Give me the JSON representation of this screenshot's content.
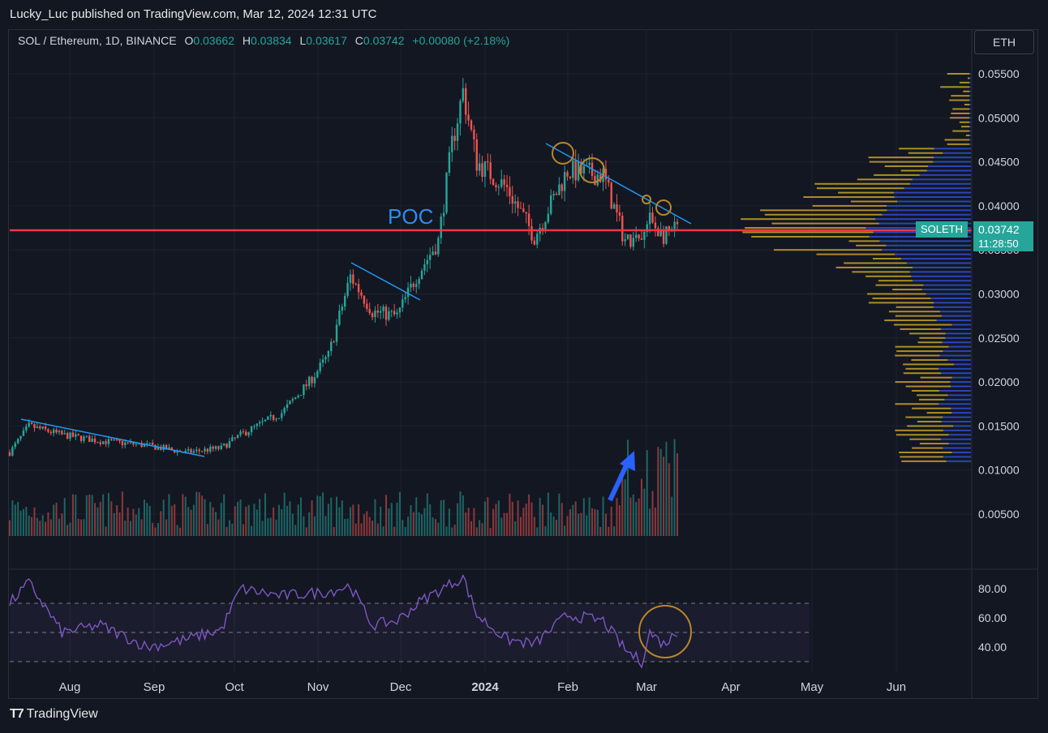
{
  "header": {
    "publisher": "Lucky_Luc published on TradingView.com, Mar 12, 2024 12:31 UTC"
  },
  "legend": {
    "symbol": "SOL / Ethereum, 1D, BINANCE",
    "o_label": "O",
    "o_value": "0.03662",
    "h_label": "H",
    "h_value": "0.03834",
    "l_label": "L",
    "l_value": "0.03617",
    "c_label": "C",
    "c_value": "0.03742",
    "change": "+0.00080 (+2.18%)"
  },
  "currency_button": "ETH",
  "price_tag": {
    "symbol": "SOLETH",
    "price": "0.03742",
    "countdown": "11:28:50"
  },
  "annotation": "POC",
  "footer": {
    "brand": "TradingView"
  },
  "colors": {
    "up": "#26a69a",
    "down": "#ef5350",
    "poc": "#f23645",
    "trendline": "#2196f3",
    "profile_gold": "#c9a227",
    "profile_blue": "#2e4fd4",
    "rsi": "#7e57c2",
    "circle": "#b8862b"
  },
  "chart_data": [
    {
      "type": "candlestick",
      "title": "SOL / Ethereum, 1D, BINANCE",
      "ylim": [
        0.0,
        0.056
      ],
      "y_ticks": [
        "0.05500",
        "0.05000",
        "0.04500",
        "0.04000",
        "0.03500",
        "0.03000",
        "0.02500",
        "0.02000",
        "0.01500",
        "0.01000",
        "0.00500"
      ],
      "x_ticks": [
        "Aug",
        "Sep",
        "Oct",
        "Nov",
        "Dec",
        "2024",
        "Feb",
        "Mar",
        "Apr",
        "May",
        "Jun"
      ],
      "poc_level": 0.0375,
      "approx_close_path": [
        [
          "2023-07-13",
          0.012
        ],
        [
          "2023-07-20",
          0.015
        ],
        [
          "2023-08-01",
          0.014
        ],
        [
          "2023-08-15",
          0.0133
        ],
        [
          "2023-09-01",
          0.0128
        ],
        [
          "2023-09-15",
          0.012
        ],
        [
          "2023-09-28",
          0.0125
        ],
        [
          "2023-10-05",
          0.014
        ],
        [
          "2023-10-20",
          0.0165
        ],
        [
          "2023-10-30",
          0.02
        ],
        [
          "2023-11-06",
          0.023
        ],
        [
          "2023-11-14",
          0.032
        ],
        [
          "2023-11-22",
          0.028
        ],
        [
          "2023-12-01",
          0.0275
        ],
        [
          "2023-12-08",
          0.032
        ],
        [
          "2023-12-16",
          0.036
        ],
        [
          "2023-12-21",
          0.047
        ],
        [
          "2023-12-25",
          0.053
        ],
        [
          "2023-12-30",
          0.045
        ],
        [
          "2024-01-10",
          0.042
        ],
        [
          "2024-01-20",
          0.0365
        ],
        [
          "2024-02-01",
          0.044
        ],
        [
          "2024-02-14",
          0.0435
        ],
        [
          "2024-02-22",
          0.036
        ],
        [
          "2024-02-28",
          0.036
        ],
        [
          "2024-03-02",
          0.0385
        ],
        [
          "2024-03-07",
          0.0365
        ],
        [
          "2024-03-12",
          0.0374
        ]
      ],
      "volume_profile": "visible",
      "volume": "visible"
    },
    {
      "type": "line",
      "title": "RSI",
      "ylim": [
        25,
        90
      ],
      "y_ticks": [
        "80.00",
        "60.00",
        "40.00"
      ],
      "bands": [
        30,
        50,
        70
      ],
      "approx_values": [
        [
          "2023-07-13",
          70
        ],
        [
          "2023-07-20",
          84
        ],
        [
          "2023-08-01",
          50
        ],
        [
          "2023-08-15",
          55
        ],
        [
          "2023-09-01",
          40
        ],
        [
          "2023-09-15",
          45
        ],
        [
          "2023-09-28",
          52
        ],
        [
          "2023-10-05",
          80
        ],
        [
          "2023-10-20",
          75
        ],
        [
          "2023-11-06",
          78
        ],
        [
          "2023-11-14",
          82
        ],
        [
          "2023-11-22",
          55
        ],
        [
          "2023-12-01",
          58
        ],
        [
          "2023-12-10",
          72
        ],
        [
          "2023-12-25",
          88
        ],
        [
          "2023-12-30",
          62
        ],
        [
          "2024-01-10",
          45
        ],
        [
          "2024-01-20",
          42
        ],
        [
          "2024-02-01",
          62
        ],
        [
          "2024-02-14",
          58
        ],
        [
          "2024-02-22",
          38
        ],
        [
          "2024-02-28",
          30
        ],
        [
          "2024-03-02",
          50
        ],
        [
          "2024-03-07",
          42
        ],
        [
          "2024-03-12",
          50
        ]
      ]
    }
  ]
}
